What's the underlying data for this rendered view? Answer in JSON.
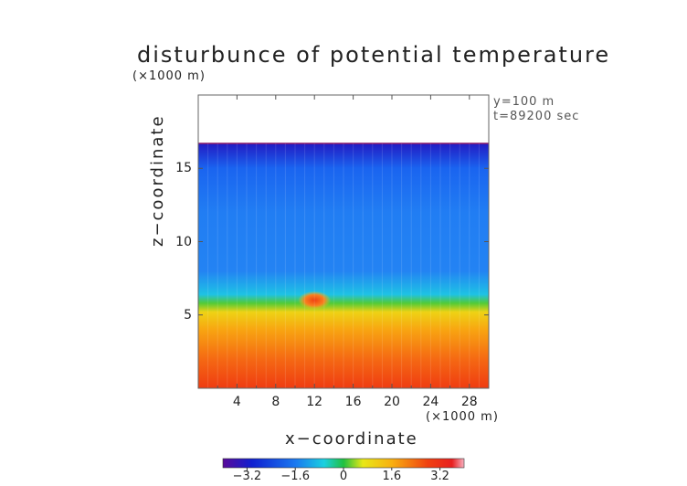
{
  "chart_data": {
    "type": "heatmap",
    "title": "disturbunce of potential temperature",
    "y_unit_label": "(×1000 m)",
    "x_unit_label": "(×1000 m)",
    "xlabel": "x−coordinate",
    "ylabel": "z−coordinate",
    "annotations": [
      "y=100 m",
      "t=89200 sec"
    ],
    "xlim": [
      0,
      30
    ],
    "ylim": [
      0,
      20
    ],
    "x_ticks": [
      "4",
      "8",
      "12",
      "16",
      "20",
      "24",
      "28"
    ],
    "x_tick_values": [
      4,
      8,
      12,
      16,
      20,
      24,
      28
    ],
    "y_ticks": [
      "5",
      "10",
      "15"
    ],
    "y_tick_values": [
      5,
      10,
      15
    ],
    "colorbar": {
      "range": [
        -4,
        4
      ],
      "ticks": [
        "−3.2",
        "−1.6",
        "0",
        "1.6",
        "3.2"
      ],
      "tick_values": [
        -3.2,
        -1.6,
        0,
        1.6,
        3.2
      ]
    },
    "field_top_z": 16.7,
    "profile": [
      {
        "z": 0.0,
        "value": 3.3
      },
      {
        "z": 2.0,
        "value": 2.7
      },
      {
        "z": 4.0,
        "value": 1.8
      },
      {
        "z": 5.2,
        "value": 1.1
      },
      {
        "z": 5.8,
        "value": 0.2
      },
      {
        "z": 6.4,
        "value": -1.0
      },
      {
        "z": 8.0,
        "value": -1.9
      },
      {
        "z": 12.0,
        "value": -2.0
      },
      {
        "z": 15.0,
        "value": -2.4
      },
      {
        "z": 16.7,
        "value": -3.4
      }
    ],
    "anomaly": {
      "x": 12.0,
      "z": 6.0,
      "value": 3.0
    }
  }
}
